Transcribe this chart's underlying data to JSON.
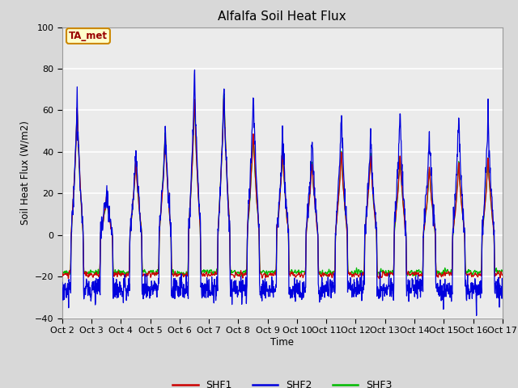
{
  "title": "Alfalfa Soil Heat Flux",
  "ylabel": "Soil Heat Flux (W/m2)",
  "xlabel": "Time",
  "ylim": [
    -40,
    100
  ],
  "bg_color": "#d8d8d8",
  "plot_bg_color": "#ebebeb",
  "grid_color": "#ffffff",
  "annotation_text": "TA_met",
  "annotation_bg": "#ffffcc",
  "annotation_border": "#cc8800",
  "annotation_text_color": "#990000",
  "legend_entries": [
    "SHF1",
    "SHF2",
    "SHF3"
  ],
  "line_colors": [
    "#cc0000",
    "#0000dd",
    "#00bb00"
  ],
  "tick_labels": [
    "Oct 2",
    "Oct 3",
    "Oct 4",
    "Oct 5",
    "Oct 6",
    "Oct 7",
    "Oct 8",
    "Oct 9",
    "Oct 10",
    "Oct 11",
    "Oct 12",
    "Oct 13",
    "Oct 14",
    "Oct 15",
    "Oct 16",
    "Oct 17"
  ],
  "yticks": [
    -40,
    -20,
    0,
    20,
    40,
    60,
    80,
    100
  ],
  "day_peaks_shf1": [
    67,
    20,
    40,
    52,
    72,
    76,
    55,
    45,
    40,
    44,
    42,
    42,
    35,
    38,
    40,
    0
  ],
  "day_peaks_shf2": [
    68,
    22,
    44,
    55,
    84,
    76,
    74,
    53,
    50,
    63,
    52,
    65,
    52,
    60,
    62,
    0
  ],
  "day_peaks_shf3": [
    66,
    20,
    40,
    55,
    72,
    76,
    55,
    45,
    40,
    44,
    44,
    42,
    35,
    38,
    40,
    0
  ],
  "n_days": 15,
  "ppd": 96
}
